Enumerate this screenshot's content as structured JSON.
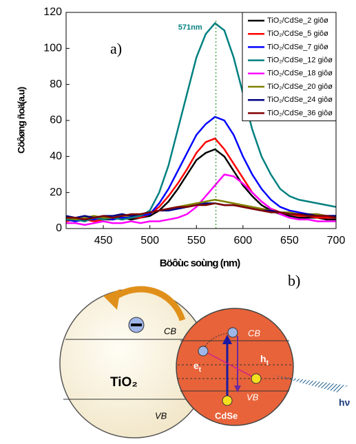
{
  "chart_data": {
    "type": "line",
    "panel_label": "a)",
    "x_label": "Böôùc soùng (nm)",
    "y_label": "Cöôøng ñoä(a.u)",
    "annotation": {
      "text": "571nm",
      "x": 571
    },
    "xlim": [
      410,
      700
    ],
    "ylim": [
      0,
      120
    ],
    "xticks": [
      450,
      500,
      550,
      600,
      650,
      700
    ],
    "yticks": [
      0,
      20,
      40,
      60,
      80,
      100,
      120
    ],
    "x": [
      410,
      420,
      430,
      440,
      450,
      460,
      470,
      480,
      490,
      500,
      510,
      520,
      530,
      540,
      550,
      560,
      570,
      580,
      590,
      600,
      610,
      620,
      630,
      640,
      650,
      660,
      670,
      680,
      690,
      700
    ],
    "series": [
      {
        "name": "TiO₂/CdSe_2 giôø",
        "color": "#000000",
        "values": [
          5,
          4,
          5,
          6,
          5,
          5,
          6,
          5,
          6,
          7,
          10,
          15,
          22,
          30,
          38,
          42,
          44,
          40,
          32,
          24,
          18,
          13,
          10,
          8,
          7,
          6,
          6,
          6,
          5,
          5
        ]
      },
      {
        "name": "TiO₂/CdSe_5 giôø",
        "color": "#ff0000",
        "values": [
          4,
          5,
          5,
          4,
          5,
          6,
          5,
          6,
          6,
          8,
          12,
          18,
          25,
          33,
          42,
          48,
          50,
          44,
          36,
          28,
          20,
          15,
          11,
          9,
          8,
          7,
          7,
          6,
          6,
          6
        ]
      },
      {
        "name": "TiO₂/CdSe_7 giôø",
        "color": "#0000ff",
        "values": [
          5,
          4,
          5,
          5,
          6,
          5,
          6,
          6,
          7,
          8,
          14,
          22,
          32,
          42,
          52,
          58,
          62,
          60,
          52,
          40,
          30,
          22,
          16,
          12,
          10,
          9,
          8,
          8,
          7,
          7
        ]
      },
      {
        "name": "TiO₂/CdSe_12 giôø",
        "color": "#008080",
        "values": [
          5,
          5,
          4,
          6,
          5,
          6,
          5,
          6,
          7,
          10,
          20,
          35,
          55,
          75,
          95,
          108,
          114,
          110,
          95,
          75,
          55,
          40,
          30,
          22,
          18,
          16,
          15,
          14,
          13,
          12
        ]
      },
      {
        "name": "TiO₂/CdSe_18 giôø",
        "color": "#ff00ff",
        "values": [
          3,
          3,
          2,
          3,
          4,
          3,
          3,
          4,
          3,
          4,
          4,
          5,
          6,
          8,
          12,
          18,
          24,
          30,
          29,
          25,
          20,
          15,
          11,
          8,
          6,
          5,
          5,
          4,
          4,
          4
        ]
      },
      {
        "name": "TiO₂/CdSe_20 giôø",
        "color": "#808000",
        "values": [
          6,
          5,
          6,
          7,
          6,
          6,
          7,
          7,
          8,
          9,
          10,
          11,
          12,
          13,
          14,
          15,
          16,
          15,
          14,
          13,
          12,
          11,
          10,
          9,
          9,
          8,
          8,
          8,
          7,
          7
        ]
      },
      {
        "name": "TiO₂/CdSe_24 giôø",
        "color": "#000080",
        "values": [
          7,
          6,
          7,
          6,
          7,
          7,
          8,
          7,
          8,
          9,
          10,
          10,
          11,
          12,
          13,
          14,
          14,
          13,
          13,
          12,
          11,
          10,
          10,
          9,
          8,
          8,
          8,
          7,
          7,
          7
        ]
      },
      {
        "name": "TiO₂/CdSe_36 giôø",
        "color": "#800000",
        "values": [
          6,
          6,
          5,
          6,
          7,
          6,
          7,
          8,
          8,
          9,
          10,
          11,
          12,
          12,
          13,
          13,
          14,
          13,
          13,
          12,
          11,
          10,
          9,
          9,
          8,
          8,
          7,
          7,
          7,
          6
        ]
      }
    ]
  },
  "diagram": {
    "panel_label": "b)",
    "tio2": "TiO₂",
    "cdse": "CdSe",
    "cb_left": "CB",
    "vb_left": "VB",
    "cb_right": "CB",
    "vb_right": "VB",
    "electron": "e",
    "electron_sub": "t",
    "hole": "h",
    "hole_sub": "t",
    "light": "hν"
  }
}
